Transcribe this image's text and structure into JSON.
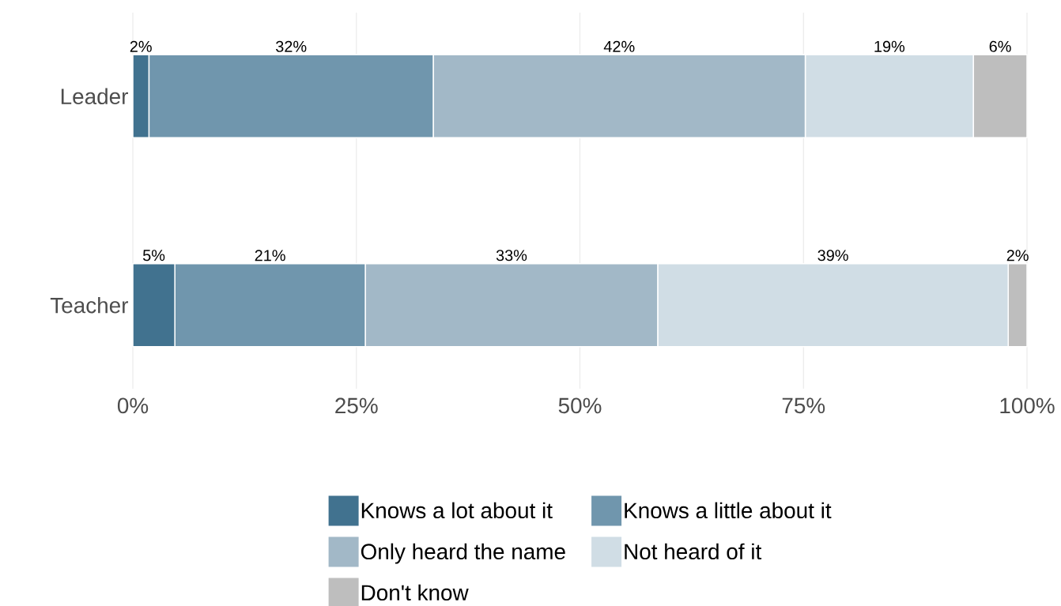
{
  "chart_data": {
    "type": "bar",
    "orientation": "horizontal",
    "stacked": true,
    "categories": [
      "Leader",
      "Teacher"
    ],
    "xlim": [
      0,
      100
    ],
    "xticks": [
      {
        "value": 0,
        "label": "0%"
      },
      {
        "value": 25,
        "label": "25%"
      },
      {
        "value": 50,
        "label": "50%"
      },
      {
        "value": 75,
        "label": "75%"
      },
      {
        "value": 100,
        "label": "100%"
      }
    ],
    "grid": "x",
    "legend": "bottom",
    "series": [
      {
        "name": "Knows a lot about it",
        "color": "#41728f",
        "values": [
          1.8,
          4.7
        ],
        "value_labels": [
          "2%",
          "5%"
        ]
      },
      {
        "name": "Knows a little about it",
        "color": "#7096ad",
        "values": [
          31.8,
          21.3
        ],
        "value_labels": [
          "32%",
          "21%"
        ]
      },
      {
        "name": "Only heard the name",
        "color": "#a2b8c7",
        "values": [
          41.6,
          32.7
        ],
        "value_labels": [
          "42%",
          "33%"
        ]
      },
      {
        "name": "Not heard of it",
        "color": "#d0dde5",
        "values": [
          18.8,
          39.2
        ],
        "value_labels": [
          "19%",
          "39%"
        ]
      },
      {
        "name": "Don't know",
        "color": "#bebebe",
        "values": [
          6.0,
          2.1
        ],
        "value_labels": [
          "6%",
          "2%"
        ]
      }
    ]
  }
}
